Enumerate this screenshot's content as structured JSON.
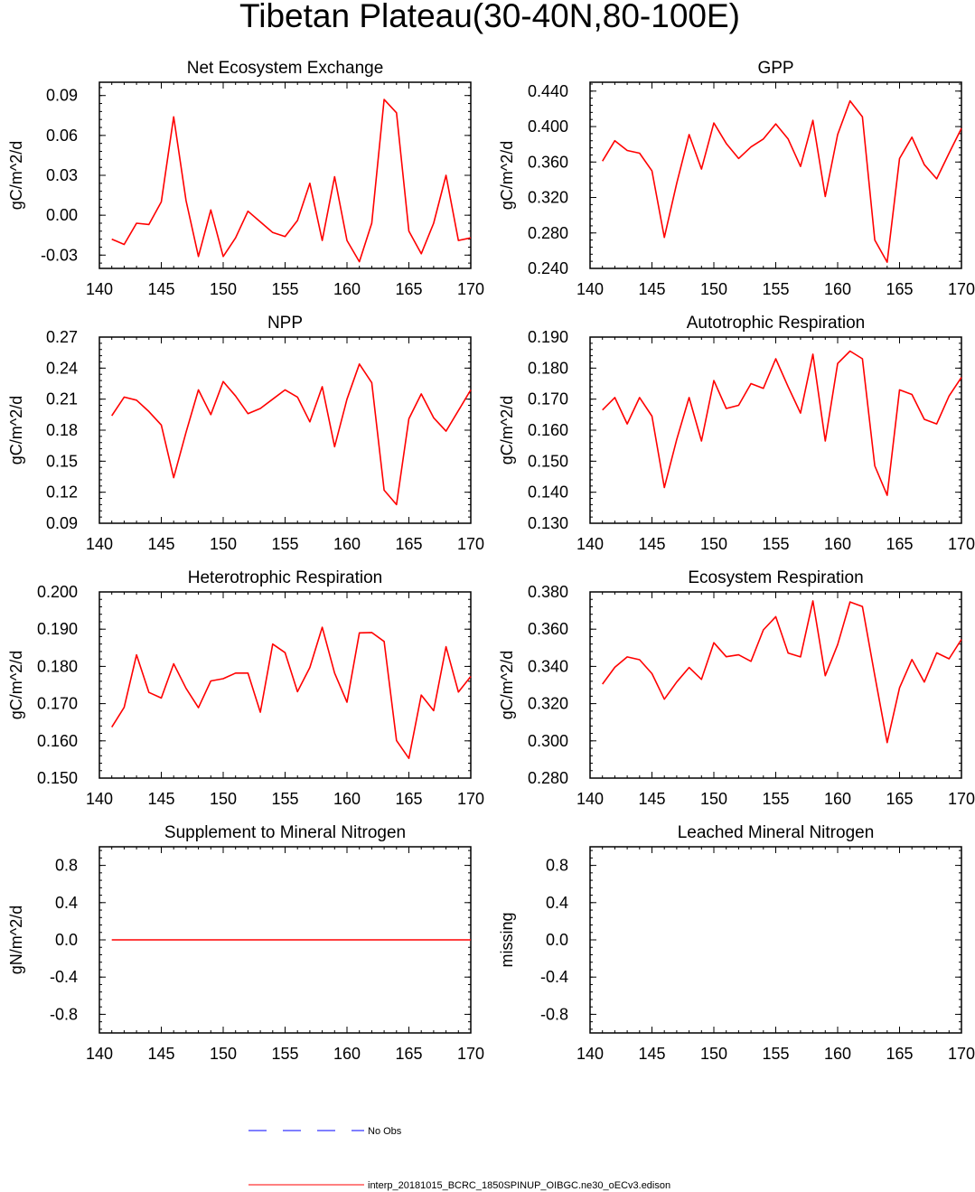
{
  "title": "Tibetan Plateau(30-40N,80-100E)",
  "colors": {
    "model": "#ff0000",
    "obs": "#0000ff",
    "axis": "#000000"
  },
  "legend": {
    "obs_label": "No Obs",
    "model_label": "interp_20181015_BCRC_1850SPINUP_OIBGC.ne30_oECv3.edison"
  },
  "chart_data": [
    {
      "type": "line",
      "title": "Net Ecosystem Exchange",
      "ylabel": "gC/m^2/d",
      "xlim": [
        140,
        170
      ],
      "xticks": [
        140,
        145,
        150,
        155,
        160,
        165,
        170
      ],
      "xtick_labels": [
        "140",
        "145",
        "150",
        "155",
        "160",
        "165",
        "170"
      ],
      "ylim": [
        -0.04,
        0.1
      ],
      "yticks": [
        -0.03,
        0.0,
        0.03,
        0.06,
        0.09
      ],
      "ytick_labels": [
        "-0.03",
        "0.00",
        "0.03",
        "0.06",
        "0.09"
      ],
      "x": [
        141,
        142,
        143,
        144,
        145,
        146,
        147,
        148,
        149,
        150,
        151,
        152,
        153,
        154,
        155,
        156,
        157,
        158,
        159,
        160,
        161,
        162,
        163,
        164,
        165,
        166,
        167,
        168,
        169,
        170
      ],
      "series": [
        {
          "name": "interp_20181015_BCRC_1850SPINUP_OIBGC.ne30_oECv3.edison",
          "values": [
            -0.018,
            -0.022,
            -0.006,
            -0.007,
            0.01,
            0.074,
            0.011,
            -0.031,
            0.004,
            -0.031,
            -0.017,
            0.003,
            -0.005,
            -0.013,
            -0.016,
            -0.004,
            0.024,
            -0.019,
            0.029,
            -0.019,
            -0.035,
            -0.006,
            0.087,
            0.077,
            -0.012,
            -0.029,
            -0.006,
            0.03,
            -0.019,
            -0.017
          ]
        }
      ]
    },
    {
      "type": "line",
      "title": "GPP",
      "ylabel": "gC/m^2/d",
      "xlim": [
        140,
        170
      ],
      "xticks": [
        140,
        145,
        150,
        155,
        160,
        165,
        170
      ],
      "xtick_labels": [
        "140",
        "145",
        "150",
        "155",
        "160",
        "165",
        "170"
      ],
      "ylim": [
        0.24,
        0.45
      ],
      "yticks": [
        0.24,
        0.28,
        0.32,
        0.36,
        0.4,
        0.44
      ],
      "ytick_labels": [
        "0.240",
        "0.280",
        "0.320",
        "0.360",
        "0.400",
        "0.440"
      ],
      "x": [
        141,
        142,
        143,
        144,
        145,
        146,
        147,
        148,
        149,
        150,
        151,
        152,
        153,
        154,
        155,
        156,
        157,
        158,
        159,
        160,
        161,
        162,
        163,
        164,
        165,
        166,
        167,
        168,
        169,
        170
      ],
      "series": [
        {
          "name": "interp_20181015_BCRC_1850SPINUP_OIBGC.ne30_oECv3.edison",
          "values": [
            0.361,
            0.384,
            0.373,
            0.37,
            0.35,
            0.275,
            0.336,
            0.391,
            0.352,
            0.404,
            0.381,
            0.364,
            0.377,
            0.386,
            0.403,
            0.386,
            0.355,
            0.407,
            0.321,
            0.391,
            0.429,
            0.411,
            0.272,
            0.247,
            0.364,
            0.388,
            0.357,
            0.341,
            0.37,
            0.398
          ]
        }
      ]
    },
    {
      "type": "line",
      "title": "NPP",
      "ylabel": "gC/m^2/d",
      "xlim": [
        140,
        170
      ],
      "xticks": [
        140,
        145,
        150,
        155,
        160,
        165,
        170
      ],
      "xtick_labels": [
        "140",
        "145",
        "150",
        "155",
        "160",
        "165",
        "170"
      ],
      "ylim": [
        0.09,
        0.27
      ],
      "yticks": [
        0.09,
        0.12,
        0.15,
        0.18,
        0.21,
        0.24,
        0.27
      ],
      "ytick_labels": [
        "0.09",
        "0.12",
        "0.15",
        "0.18",
        "0.21",
        "0.24",
        "0.27"
      ],
      "x": [
        141,
        142,
        143,
        144,
        145,
        146,
        147,
        148,
        149,
        150,
        151,
        152,
        153,
        154,
        155,
        156,
        157,
        158,
        159,
        160,
        161,
        162,
        163,
        164,
        165,
        166,
        167,
        168,
        169,
        170
      ],
      "series": [
        {
          "name": "interp_20181015_BCRC_1850SPINUP_OIBGC.ne30_oECv3.edison",
          "values": [
            0.194,
            0.212,
            0.209,
            0.198,
            0.185,
            0.134,
            0.178,
            0.219,
            0.195,
            0.227,
            0.213,
            0.196,
            0.201,
            0.21,
            0.219,
            0.212,
            0.188,
            0.222,
            0.164,
            0.21,
            0.244,
            0.226,
            0.122,
            0.108,
            0.191,
            0.215,
            0.192,
            0.179,
            0.199,
            0.219
          ]
        }
      ]
    },
    {
      "type": "line",
      "title": "Autotrophic Respiration",
      "ylabel": "gC/m^2/d",
      "xlim": [
        140,
        170
      ],
      "xticks": [
        140,
        145,
        150,
        155,
        160,
        165,
        170
      ],
      "xtick_labels": [
        "140",
        "145",
        "150",
        "155",
        "160",
        "165",
        "170"
      ],
      "ylim": [
        0.13,
        0.19
      ],
      "yticks": [
        0.13,
        0.14,
        0.15,
        0.16,
        0.17,
        0.18,
        0.19
      ],
      "ytick_labels": [
        "0.130",
        "0.140",
        "0.150",
        "0.160",
        "0.170",
        "0.180",
        "0.190"
      ],
      "x": [
        141,
        142,
        143,
        144,
        145,
        146,
        147,
        148,
        149,
        150,
        151,
        152,
        153,
        154,
        155,
        156,
        157,
        158,
        159,
        160,
        161,
        162,
        163,
        164,
        165,
        166,
        167,
        168,
        169,
        170
      ],
      "series": [
        {
          "name": "interp_20181015_BCRC_1850SPINUP_OIBGC.ne30_oECv3.edison",
          "values": [
            0.1665,
            0.1705,
            0.162,
            0.1705,
            0.1645,
            0.1415,
            0.157,
            0.1705,
            0.1565,
            0.176,
            0.167,
            0.168,
            0.175,
            0.1735,
            0.183,
            0.174,
            0.1655,
            0.1845,
            0.1565,
            0.1815,
            0.1855,
            0.183,
            0.1485,
            0.139,
            0.173,
            0.1715,
            0.1635,
            0.162,
            0.171,
            0.177
          ]
        }
      ]
    },
    {
      "type": "line",
      "title": "Heterotrophic Respiration",
      "ylabel": "gC/m^2/d",
      "xlim": [
        140,
        170
      ],
      "xticks": [
        140,
        145,
        150,
        155,
        160,
        165,
        170
      ],
      "xtick_labels": [
        "140",
        "145",
        "150",
        "155",
        "160",
        "165",
        "170"
      ],
      "ylim": [
        0.15,
        0.2
      ],
      "yticks": [
        0.15,
        0.16,
        0.17,
        0.18,
        0.19,
        0.2
      ],
      "ytick_labels": [
        "0.150",
        "0.160",
        "0.170",
        "0.180",
        "0.190",
        "0.200"
      ],
      "x": [
        141,
        142,
        143,
        144,
        145,
        146,
        147,
        148,
        149,
        150,
        151,
        152,
        153,
        154,
        155,
        156,
        157,
        158,
        159,
        160,
        161,
        162,
        163,
        164,
        165,
        166,
        167,
        168,
        169,
        170
      ],
      "series": [
        {
          "name": "interp_20181015_BCRC_1850SPINUP_OIBGC.ne30_oECv3.edison",
          "values": [
            0.1637,
            0.169,
            0.1831,
            0.173,
            0.1715,
            0.1807,
            0.1741,
            0.1689,
            0.1761,
            0.1767,
            0.1782,
            0.1782,
            0.1677,
            0.186,
            0.1837,
            0.1732,
            0.1797,
            0.1905,
            0.1782,
            0.1704,
            0.189,
            0.1891,
            0.1867,
            0.1601,
            0.1553,
            0.1723,
            0.1681,
            0.1853,
            0.1731,
            0.1773
          ]
        }
      ]
    },
    {
      "type": "line",
      "title": "Ecosystem Respiration",
      "ylabel": "gC/m^2/d",
      "xlim": [
        140,
        170
      ],
      "xticks": [
        140,
        145,
        150,
        155,
        160,
        165,
        170
      ],
      "xtick_labels": [
        "140",
        "145",
        "150",
        "155",
        "160",
        "165",
        "170"
      ],
      "ylim": [
        0.28,
        0.38
      ],
      "yticks": [
        0.28,
        0.3,
        0.32,
        0.34,
        0.36,
        0.38
      ],
      "ytick_labels": [
        "0.280",
        "0.300",
        "0.320",
        "0.340",
        "0.360",
        "0.380"
      ],
      "x": [
        141,
        142,
        143,
        144,
        145,
        146,
        147,
        148,
        149,
        150,
        151,
        152,
        153,
        154,
        155,
        156,
        157,
        158,
        159,
        160,
        161,
        162,
        163,
        164,
        165,
        166,
        167,
        168,
        169,
        170
      ],
      "series": [
        {
          "name": "interp_20181015_BCRC_1850SPINUP_OIBGC.ne30_oECv3.edison",
          "values": [
            0.3305,
            0.3395,
            0.3451,
            0.3436,
            0.3361,
            0.3224,
            0.3316,
            0.3394,
            0.333,
            0.3527,
            0.3452,
            0.3462,
            0.3427,
            0.3596,
            0.3667,
            0.3472,
            0.3451,
            0.3752,
            0.335,
            0.3517,
            0.3746,
            0.3722,
            0.3351,
            0.2991,
            0.3285,
            0.3437,
            0.3316,
            0.3473,
            0.3441,
            0.3545
          ]
        }
      ]
    },
    {
      "type": "line",
      "title": "Supplement to Mineral Nitrogen",
      "ylabel": "gN/m^2/d",
      "xlim": [
        140,
        170
      ],
      "xticks": [
        140,
        145,
        150,
        155,
        160,
        165,
        170
      ],
      "xtick_labels": [
        "140",
        "145",
        "150",
        "155",
        "160",
        "165",
        "170"
      ],
      "ylim": [
        -1.0,
        1.0
      ],
      "yticks": [
        -0.8,
        -0.4,
        0.0,
        0.4,
        0.8
      ],
      "ytick_labels": [
        "-0.8",
        "-0.4",
        "0.0",
        "0.4",
        "0.8"
      ],
      "x": [
        141,
        142,
        143,
        144,
        145,
        146,
        147,
        148,
        149,
        150,
        151,
        152,
        153,
        154,
        155,
        156,
        157,
        158,
        159,
        160,
        161,
        162,
        163,
        164,
        165,
        166,
        167,
        168,
        169,
        170
      ],
      "series": [
        {
          "name": "interp_20181015_BCRC_1850SPINUP_OIBGC.ne30_oECv3.edison",
          "values": [
            0,
            0,
            0,
            0,
            0,
            0,
            0,
            0,
            0,
            0,
            0,
            0,
            0,
            0,
            0,
            0,
            0,
            0,
            0,
            0,
            0,
            0,
            0,
            0,
            0,
            0,
            0,
            0,
            0,
            0
          ]
        }
      ]
    },
    {
      "type": "line",
      "title": "Leached Mineral Nitrogen",
      "ylabel": "missing",
      "xlim": [
        140,
        170
      ],
      "xticks": [
        140,
        145,
        150,
        155,
        160,
        165,
        170
      ],
      "xtick_labels": [
        "140",
        "145",
        "150",
        "155",
        "160",
        "165",
        "170"
      ],
      "ylim": [
        -1.0,
        1.0
      ],
      "yticks": [
        -0.8,
        -0.4,
        0.0,
        0.4,
        0.8
      ],
      "ytick_labels": [
        "-0.8",
        "-0.4",
        "0.0",
        "0.4",
        "0.8"
      ],
      "x": [],
      "series": []
    }
  ]
}
